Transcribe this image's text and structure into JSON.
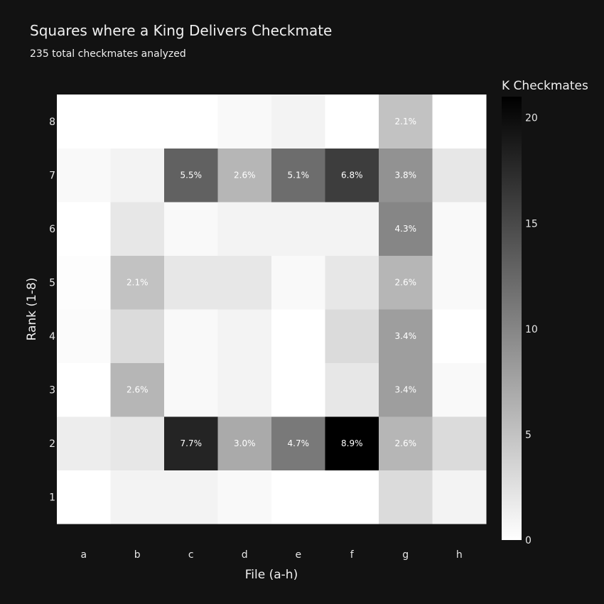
{
  "chart_data": {
    "type": "heatmap",
    "title": "Squares where a King Delivers Checkmate",
    "subtitle": "235 total checkmates analyzed",
    "xlabel": "File (a-h)",
    "ylabel": "Rank (1-8)",
    "x_categories": [
      "a",
      "b",
      "c",
      "d",
      "e",
      "f",
      "g",
      "h"
    ],
    "y_categories": [
      "1",
      "2",
      "3",
      "4",
      "5",
      "6",
      "7",
      "8"
    ],
    "values": [
      [
        0,
        1,
        1,
        0.5,
        0,
        0,
        3,
        1
      ],
      [
        1.5,
        2,
        18,
        7,
        11,
        21,
        6,
        3
      ],
      [
        0,
        6,
        0.5,
        1,
        0,
        2,
        8,
        0.5
      ],
      [
        0.3,
        3,
        0.5,
        1,
        0,
        3,
        8,
        0
      ],
      [
        0.2,
        5,
        2,
        2,
        0.5,
        2,
        6,
        0.5
      ],
      [
        0,
        2,
        0.5,
        1,
        1,
        1,
        10,
        0.5
      ],
      [
        0.5,
        1,
        13,
        6,
        12,
        16,
        9,
        2
      ],
      [
        0,
        0,
        0,
        0.5,
        1,
        0,
        5,
        0
      ]
    ],
    "cell_labels": [
      [
        "",
        "",
        "",
        "",
        "",
        "",
        "",
        ""
      ],
      [
        "",
        "",
        "7.7%",
        "3.0%",
        "4.7%",
        "8.9%",
        "2.6%",
        ""
      ],
      [
        "",
        "2.6%",
        "",
        "",
        "",
        "",
        "3.4%",
        ""
      ],
      [
        "",
        "",
        "",
        "",
        "",
        "",
        "3.4%",
        ""
      ],
      [
        "",
        "2.1%",
        "",
        "",
        "",
        "",
        "2.6%",
        ""
      ],
      [
        "",
        "",
        "",
        "",
        "",
        "",
        "4.3%",
        ""
      ],
      [
        "",
        "",
        "5.5%",
        "2.6%",
        "5.1%",
        "6.8%",
        "3.8%",
        ""
      ],
      [
        "",
        "",
        "",
        "",
        "",
        "",
        "2.1%",
        ""
      ]
    ],
    "colorbar": {
      "title": "K Checkmates",
      "min": 0,
      "max": 21,
      "ticks": [
        0,
        5,
        10,
        15,
        20
      ]
    },
    "colorscale": [
      "#ffffff",
      "#000000"
    ]
  }
}
